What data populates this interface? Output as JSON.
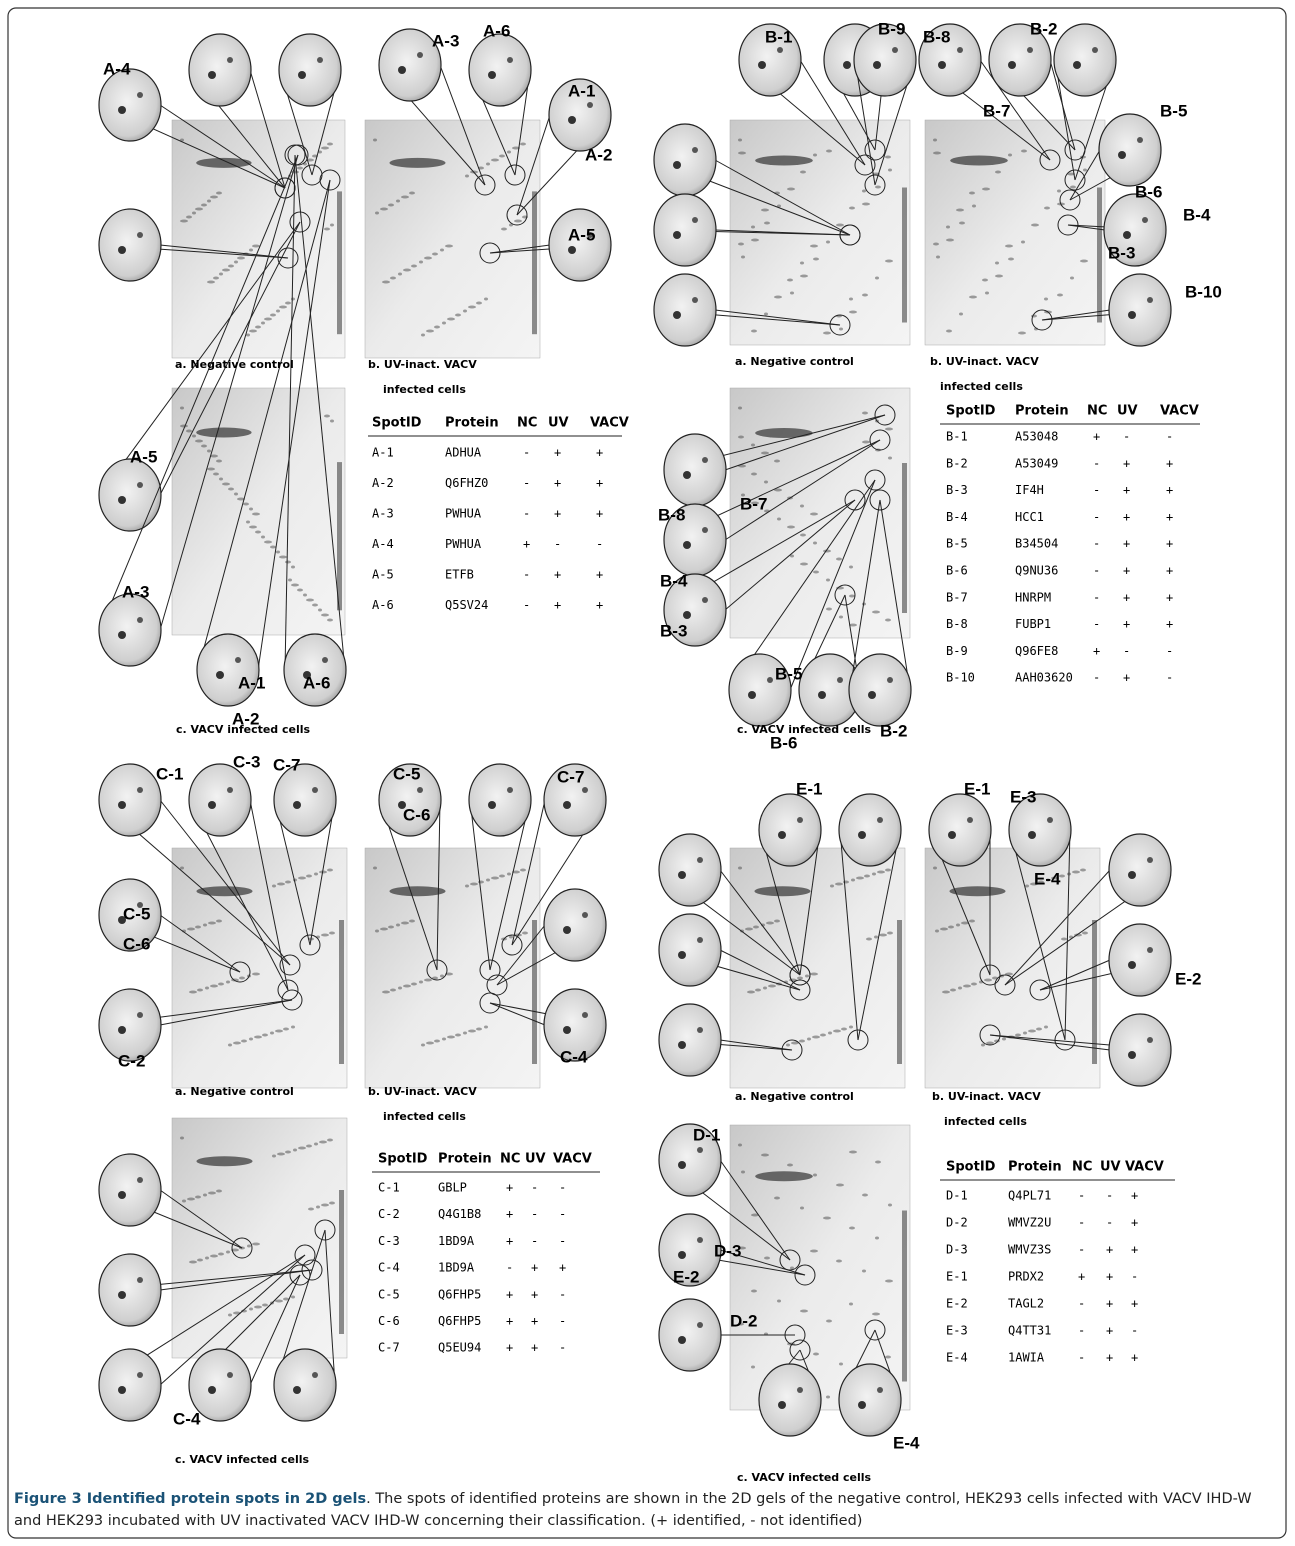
{
  "quadrants": [
    {
      "captions": [
        "a. Negative control",
        "b. UV-inact. VACV",
        "infected cells",
        "c. VACV infected cells"
      ],
      "spot_labels": [
        "A-4",
        "A-3",
        "A-6",
        "A-1",
        "A-2",
        "A-5",
        "A-5",
        "A-3",
        "A-1",
        "A-6",
        "A-2"
      ],
      "table": {
        "header": [
          "SpotID",
          "Protein",
          "NC",
          "UV",
          "VACV"
        ],
        "rows": [
          [
            "A-1",
            "ADHUA",
            "-",
            "+",
            "+"
          ],
          [
            "A-2",
            "Q6FHZ0",
            "-",
            "+",
            "+"
          ],
          [
            "A-3",
            "PWHUA",
            "-",
            "+",
            "+"
          ],
          [
            "A-4",
            "PWHUA",
            "+",
            "-",
            "-"
          ],
          [
            "A-5",
            "ETFB",
            "-",
            "+",
            "+"
          ],
          [
            "A-6",
            "Q5SV24",
            "-",
            "+",
            "+"
          ]
        ]
      }
    },
    {
      "captions": [
        "a. Negative control",
        "b. UV-inact. VACV",
        "infected cells",
        "c. VACV infected cells"
      ],
      "spot_labels": [
        "B-1",
        "B-9",
        "B-8",
        "B-2",
        "B-7",
        "B-5",
        "B-6",
        "B-4",
        "B-3",
        "B-10",
        "B-8",
        "B-7",
        "B-4",
        "B-3",
        "B-5",
        "B-6",
        "B-2"
      ],
      "table": {
        "header": [
          "SpotID",
          "Protein",
          "NC",
          "UV",
          "VACV"
        ],
        "rows": [
          [
            "B-1",
            "A53048",
            "+",
            "-",
            "-"
          ],
          [
            "B-2",
            "A53049",
            "-",
            "+",
            "+"
          ],
          [
            "B-3",
            "IF4H",
            "-",
            "+",
            "+"
          ],
          [
            "B-4",
            "HCC1",
            "-",
            "+",
            "+"
          ],
          [
            "B-5",
            "B34504",
            "-",
            "+",
            "+"
          ],
          [
            "B-6",
            "Q9NU36",
            "-",
            "+",
            "+"
          ],
          [
            "B-7",
            "HNRPM",
            "-",
            "+",
            "+"
          ],
          [
            "B-8",
            "FUBP1",
            "-",
            "+",
            "+"
          ],
          [
            "B-9",
            "Q96FE8",
            "+",
            "-",
            "-"
          ],
          [
            "B-10",
            "AAH03620",
            "-",
            "+",
            "-"
          ]
        ]
      }
    },
    {
      "captions": [
        "a. Negative control",
        "b. UV-inact. VACV",
        "infected cells",
        "c. VACV infected cells"
      ],
      "spot_labels": [
        "C-1",
        "C-3",
        "C-7",
        "C-5",
        "C-6",
        "C-7",
        "C-5",
        "C-6",
        "C-2",
        "C-4",
        "C-4"
      ],
      "table": {
        "header": [
          "SpotID",
          "Protein",
          "NC",
          "UV",
          "VACV"
        ],
        "rows": [
          [
            "C-1",
            "GBLP",
            "+",
            "-",
            "-"
          ],
          [
            "C-2",
            "Q4G1B8",
            "+",
            "-",
            "-"
          ],
          [
            "C-3",
            "1BD9A",
            "+",
            "-",
            "-"
          ],
          [
            "C-4",
            "1BD9A",
            "-",
            "+",
            "+"
          ],
          [
            "C-5",
            "Q6FHP5",
            "+",
            "+",
            "-"
          ],
          [
            "C-6",
            "Q6FHP5",
            "+",
            "+",
            "-"
          ],
          [
            "C-7",
            "Q5EU94",
            "+",
            "+",
            "-"
          ]
        ]
      }
    },
    {
      "captions": [
        "a. Negative control",
        "b. UV-inact. VACV",
        "infected cells",
        "c. VACV infected cells"
      ],
      "spot_labels": [
        "E-1",
        "E-1",
        "E-3",
        "E-4",
        "E-2",
        "D-1",
        "D-3",
        "E-2",
        "D-2",
        "E-4"
      ],
      "table": {
        "header": [
          "SpotID",
          "Protein",
          "NC",
          "UV",
          "VACV"
        ],
        "rows": [
          [
            "D-1",
            "Q4PL71",
            "-",
            "-",
            "+"
          ],
          [
            "D-2",
            "WMVZ2U",
            "-",
            "-",
            "+"
          ],
          [
            "D-3",
            "WMVZ3S",
            "-",
            "+",
            "+"
          ],
          [
            "E-1",
            "PRDX2",
            "+",
            "+",
            "-"
          ],
          [
            "E-2",
            "TAGL2",
            "-",
            "+",
            "+"
          ],
          [
            "E-3",
            "Q4TT31",
            "-",
            "+",
            "-"
          ],
          [
            "E-4",
            "1AWIA",
            "-",
            "+",
            "+"
          ]
        ]
      }
    }
  ],
  "figure_caption": {
    "label": "Figure 3 Identified protein spots in 2D gels",
    "text": ". The spots of identified proteins are shown in the 2D gels of the negative control, HEK293 cells infected with VACV IHD-W and HEK293 incubated with UV inactivated VACV IHD-W concerning their classification. (+ identified, - not identified)"
  }
}
